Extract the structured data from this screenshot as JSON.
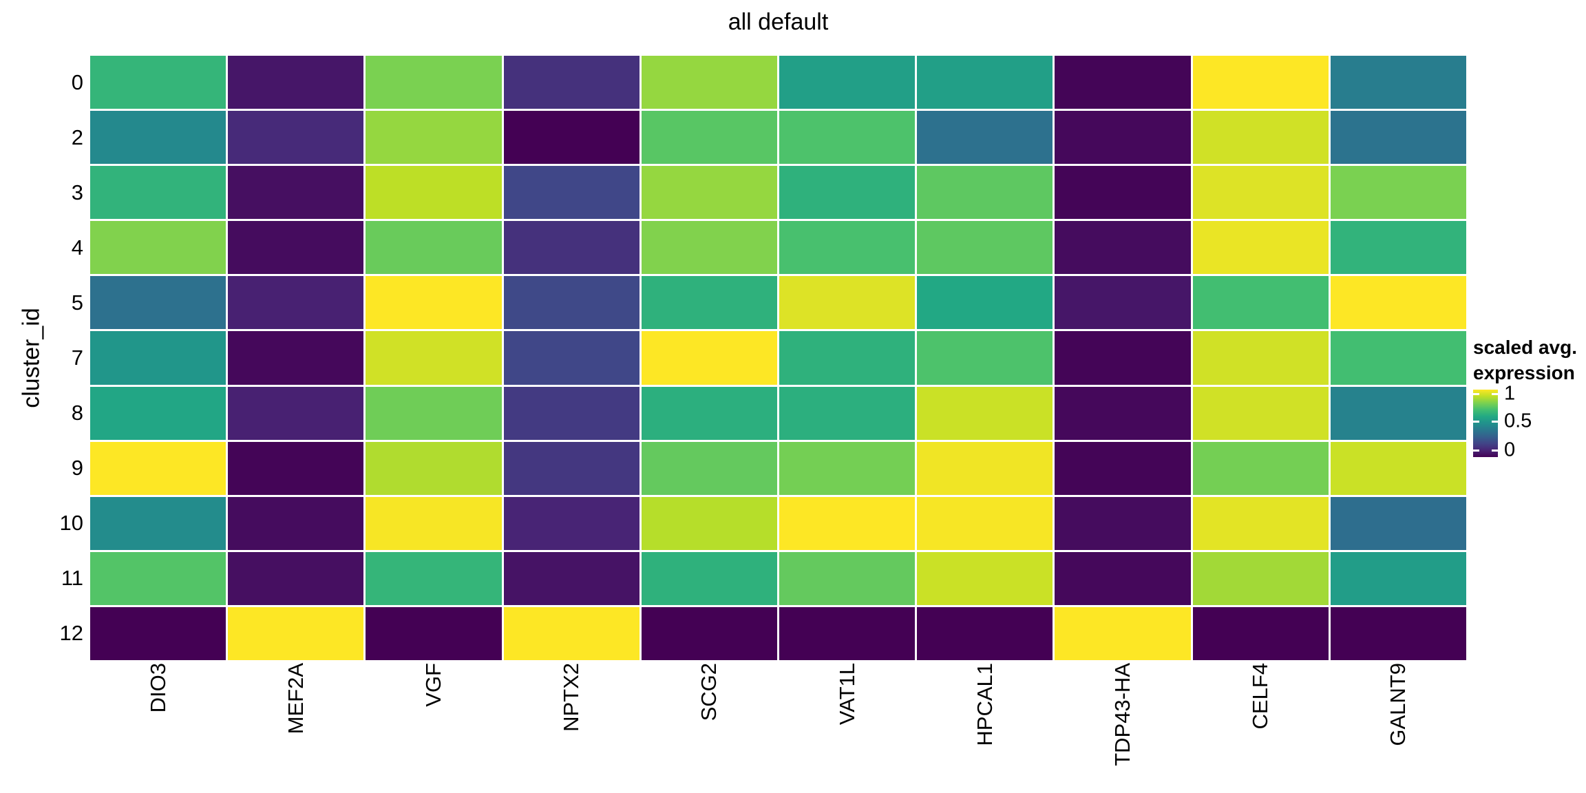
{
  "title": "all default",
  "y_axis_title": "cluster_id",
  "legend": {
    "title_line1": "scaled avg.",
    "title_line2": "expression",
    "ticks": [
      "1",
      "0.5",
      "0"
    ]
  },
  "colors": {
    "background": "#ffffff",
    "text": "#000000",
    "gap": "#ffffff",
    "viridis_stops": [
      "#440154",
      "#482475",
      "#414487",
      "#355f8d",
      "#2a788e",
      "#21918c",
      "#22a884",
      "#42be71",
      "#7ad151",
      "#bddf26",
      "#fde725"
    ]
  },
  "chart_data": {
    "type": "heatmap",
    "title": "all default",
    "xlabel": "",
    "ylabel": "cluster_id",
    "colormap": "viridis",
    "value_range": [
      0,
      1
    ],
    "legend_position": "right",
    "x_categories": [
      "DIO3",
      "MEF2A",
      "VGF",
      "NPTX2",
      "SCG2",
      "VAT1L",
      "HPCAL1",
      "TDP43-HA",
      "CELF4",
      "GALNT9"
    ],
    "y_categories": [
      "0",
      "2",
      "3",
      "4",
      "5",
      "7",
      "8",
      "9",
      "10",
      "11",
      "12"
    ],
    "values": [
      [
        0.66,
        0.06,
        0.8,
        0.14,
        0.84,
        0.56,
        0.56,
        0.01,
        1.0,
        0.42
      ],
      [
        0.47,
        0.12,
        0.84,
        0.0,
        0.74,
        0.72,
        0.37,
        0.02,
        0.93,
        0.38
      ],
      [
        0.65,
        0.04,
        0.9,
        0.21,
        0.84,
        0.64,
        0.75,
        0.01,
        0.95,
        0.8
      ],
      [
        0.81,
        0.03,
        0.77,
        0.14,
        0.81,
        0.71,
        0.75,
        0.03,
        0.97,
        0.65
      ],
      [
        0.37,
        0.09,
        1.0,
        0.22,
        0.64,
        0.95,
        0.6,
        0.06,
        0.7,
        1.0
      ],
      [
        0.52,
        0.02,
        0.93,
        0.21,
        1.0,
        0.64,
        0.72,
        0.01,
        0.93,
        0.7
      ],
      [
        0.59,
        0.09,
        0.78,
        0.17,
        0.63,
        0.63,
        0.92,
        0.02,
        0.93,
        0.44
      ],
      [
        1.0,
        0.01,
        0.88,
        0.16,
        0.76,
        0.79,
        0.98,
        0.01,
        0.79,
        0.92
      ],
      [
        0.48,
        0.03,
        0.99,
        0.1,
        0.89,
        1.0,
        0.99,
        0.03,
        0.96,
        0.36
      ],
      [
        0.73,
        0.04,
        0.66,
        0.05,
        0.64,
        0.76,
        0.92,
        0.02,
        0.86,
        0.55
      ],
      [
        0.0,
        1.0,
        0.0,
        1.0,
        0.0,
        0.0,
        0.0,
        1.0,
        0.0,
        0.0
      ]
    ]
  }
}
